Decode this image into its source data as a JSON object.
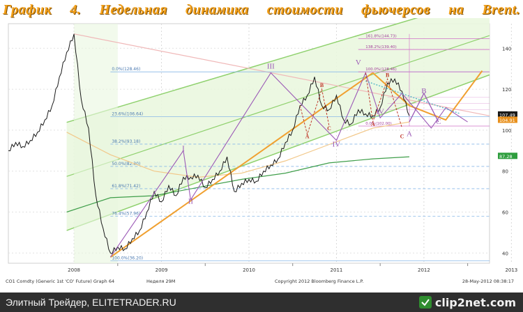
{
  "title": {
    "graph": "График",
    "number": "4.",
    "w1": "Недельная",
    "w2": "динамика",
    "w3": "стоимости",
    "w4": "фьючерсов",
    "w5": "на",
    "w6": "Brent."
  },
  "footer": {
    "left_text": "Элитный Трейдер, ELITETRADER.RU",
    "logo_text": "clip2net.com",
    "logo_icon": "clip2net-logo-icon"
  },
  "chart_data": {
    "type": "line",
    "x_ticks": [
      "2008",
      "2009",
      "2010",
      "2011",
      "2012",
      "2013"
    ],
    "y_ticks": [
      40,
      60,
      80,
      100,
      120,
      140
    ],
    "ylim": [
      35,
      152
    ],
    "bottom_caption": {
      "left": "CO1 Comdty (Generic 1st 'CO' Future) Graph 64",
      "mid": "Неделя 29М",
      "center": "Copyright 2012 Bloomberg Finance L.P.",
      "right": "28-May-2012 08:38:17"
    },
    "price_series": {
      "name": "",
      "points": [
        [
          "2007-10",
          90
        ],
        [
          "2007-11",
          94
        ],
        [
          "2007-12",
          92
        ],
        [
          "2008-01",
          95
        ],
        [
          "2008-02",
          99
        ],
        [
          "2008-03",
          105
        ],
        [
          "2008-04",
          112
        ],
        [
          "2008-05",
          126
        ],
        [
          "2008-06",
          138
        ],
        [
          "2008-07",
          147
        ],
        [
          "2008-08",
          115
        ],
        [
          "2008-09",
          101
        ],
        [
          "2008-10",
          68
        ],
        [
          "2008-11",
          52
        ],
        [
          "2008-12",
          40
        ],
        [
          "2009-01",
          43
        ],
        [
          "2009-02",
          42
        ],
        [
          "2009-03",
          47
        ],
        [
          "2009-04",
          51
        ],
        [
          "2009-05",
          60
        ],
        [
          "2009-06",
          70
        ],
        [
          "2009-07",
          65
        ],
        [
          "2009-08",
          73
        ],
        [
          "2009-09",
          68
        ],
        [
          "2009-10",
          77
        ],
        [
          "2009-11",
          77
        ],
        [
          "2009-12",
          78
        ],
        [
          "2010-01",
          72
        ],
        [
          "2010-02",
          76
        ],
        [
          "2010-03",
          80
        ],
        [
          "2010-04",
          87
        ],
        [
          "2010-05",
          70
        ],
        [
          "2010-06",
          74
        ],
        [
          "2010-07",
          76
        ],
        [
          "2010-08",
          75
        ],
        [
          "2010-09",
          80
        ],
        [
          "2010-10",
          83
        ],
        [
          "2010-11",
          86
        ],
        [
          "2010-12",
          94
        ],
        [
          "2011-01",
          100
        ],
        [
          "2011-02",
          112
        ],
        [
          "2011-03",
          117
        ],
        [
          "2011-04",
          126
        ],
        [
          "2011-05",
          112
        ],
        [
          "2011-06",
          110
        ],
        [
          "2011-07",
          117
        ],
        [
          "2011-08",
          105
        ],
        [
          "2011-09",
          103
        ],
        [
          "2011-10",
          110
        ],
        [
          "2011-11",
          108
        ],
        [
          "2011-12",
          107
        ],
        [
          "2012-01",
          111
        ],
        [
          "2012-02",
          123
        ],
        [
          "2012-03",
          125
        ],
        [
          "2012-04",
          119
        ],
        [
          "2012-05",
          107
        ]
      ]
    },
    "last_price_labels": [
      {
        "value": "107.49",
        "color": "#1a1a1a"
      },
      {
        "value": "104.91",
        "color": "#e8901c"
      },
      {
        "value": "87.28",
        "color": "#2e9e3e"
      }
    ],
    "fibonacci_retracements": [
      {
        "label": "0.0%(128.46)",
        "value": 128.46
      },
      {
        "label": "23.6%(106.64)",
        "value": 106.64
      },
      {
        "label": "38.2%(93.18)",
        "value": 93.18
      },
      {
        "label": "50.0%(82.30)",
        "value": 82.3
      },
      {
        "label": "61.8%(71.42)",
        "value": 71.42
      },
      {
        "label": "76.4%(57.96)",
        "value": 57.96
      },
      {
        "label": "100.0%(36.20)",
        "value": 36.2
      }
    ],
    "fibonacci_extensions": [
      {
        "label": "161.8%(144.73)",
        "value": 144.73
      },
      {
        "label": "138.2%(139.40)",
        "value": 139.4
      },
      {
        "label": "100.0%(128.46)",
        "value": 128.46
      },
      {
        "label": "0.0%(102.00)",
        "value": 102.0
      }
    ],
    "wave_labels": [
      {
        "text": "I",
        "date": "2009-10",
        "value": 90,
        "color": "#9b59b6"
      },
      {
        "text": "II",
        "date": "2009-11",
        "value": 64,
        "color": "#9b59b6"
      },
      {
        "text": "III",
        "date": "2010-10",
        "value": 130,
        "color": "#9b59b6"
      },
      {
        "text": "IV",
        "date": "2011-07",
        "value": 92,
        "color": "#9b59b6"
      },
      {
        "text": "V",
        "date": "2011-10",
        "value": 132,
        "color": "#9b59b6"
      },
      {
        "text": "IV",
        "date": "2012-01",
        "value": 108,
        "color": "#9b59b6"
      },
      {
        "text": "A",
        "date": "2011-03",
        "value": 96,
        "color": "#c0392b"
      },
      {
        "text": "B",
        "date": "2011-05",
        "value": 121,
        "color": "#c0392b"
      },
      {
        "text": "C",
        "date": "2011-06",
        "value": 100,
        "color": "#c0392b"
      },
      {
        "text": "A",
        "date": "2011-12",
        "value": 102,
        "color": "#c0392b"
      },
      {
        "text": "B",
        "date": "2012-02",
        "value": 126,
        "color": "#c0392b"
      },
      {
        "text": "C",
        "date": "2012-04",
        "value": 96,
        "color": "#c0392b"
      },
      {
        "text": "A",
        "date": "2012-05",
        "value": 97,
        "color": "#9b59b6"
      },
      {
        "text": "B",
        "date": "2012-07",
        "value": 118,
        "color": "#9b59b6"
      },
      {
        "text": "C",
        "date": "2012-09",
        "value": 103,
        "color": "#9b59b6"
      }
    ],
    "colors": {
      "channel_fill": "#eaf7df",
      "channel_lines": "#8fd16e",
      "trend_line": "#f0a030",
      "wave_line": "#9b59b6",
      "price": "#1a1a1a",
      "ma_long": "#f2c88a",
      "ma_green": "#3f9e4a",
      "resistance": "#f0b8b8",
      "fib_line": "#88b8e8",
      "fib_ext": "#d070c8"
    }
  }
}
